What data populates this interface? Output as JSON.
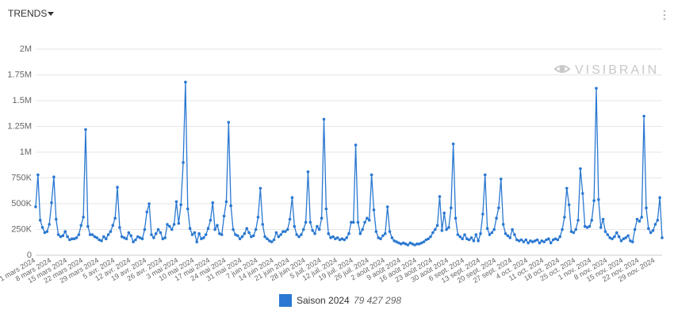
{
  "header": {
    "title": "TRENDS"
  },
  "watermark": "VISIBRAIN",
  "chart_data": {
    "type": "line",
    "categories": [
      "1 mars 2024",
      null,
      null,
      null,
      null,
      null,
      null,
      "8 mars 2024",
      null,
      null,
      null,
      null,
      null,
      null,
      "15 mars 2024",
      null,
      null,
      null,
      null,
      null,
      null,
      "22 mars 2024",
      null,
      null,
      null,
      null,
      null,
      null,
      "29 mars 2024",
      null,
      null,
      null,
      null,
      null,
      null,
      "5 avr. 2024",
      null,
      null,
      null,
      null,
      null,
      null,
      "12 avr. 2024",
      null,
      null,
      null,
      null,
      null,
      null,
      "19 avr. 2024",
      null,
      null,
      null,
      null,
      null,
      null,
      "26 avr. 2024",
      null,
      null,
      null,
      null,
      null,
      null,
      "3 mai 2024",
      null,
      null,
      null,
      null,
      null,
      null,
      "10 mai 2024",
      null,
      null,
      null,
      null,
      null,
      null,
      "17 mai 2024",
      null,
      null,
      null,
      null,
      null,
      null,
      "24 mai 2024",
      null,
      null,
      null,
      null,
      null,
      null,
      "31 mai 2024",
      null,
      null,
      null,
      null,
      null,
      null,
      "7 juin 2024",
      null,
      null,
      null,
      null,
      null,
      null,
      "14 juin 2024",
      null,
      null,
      null,
      null,
      null,
      null,
      "21 juin 2024",
      null,
      null,
      null,
      null,
      null,
      null,
      "28 juin 2024",
      null,
      null,
      null,
      null,
      null,
      null,
      "5 juil. 2024",
      null,
      null,
      null,
      null,
      null,
      null,
      "12 juil. 2024",
      null,
      null,
      null,
      null,
      null,
      null,
      "19 juil. 2024",
      null,
      null,
      null,
      null,
      null,
      null,
      "26 juil. 2024",
      null,
      null,
      null,
      null,
      null,
      null,
      "2 août 2024",
      null,
      null,
      null,
      null,
      null,
      null,
      "9 août 2024",
      null,
      null,
      null,
      null,
      null,
      null,
      "16 août 2024",
      null,
      null,
      null,
      null,
      null,
      null,
      "23 août 2024",
      null,
      null,
      null,
      null,
      null,
      null,
      "30 août 2024",
      null,
      null,
      null,
      null,
      null,
      null,
      "6 sept. 2024",
      null,
      null,
      null,
      null,
      null,
      null,
      "13 sept. 2024",
      null,
      null,
      null,
      null,
      null,
      null,
      "20 sept. 2024",
      null,
      null,
      null,
      null,
      null,
      null,
      "27 sept. 2024",
      null,
      null,
      null,
      null,
      null,
      null,
      "4 oct. 2024",
      null,
      null,
      null,
      null,
      null,
      null,
      "11 oct. 2024",
      null,
      null,
      null,
      null,
      null,
      null,
      "18 oct. 2024",
      null,
      null,
      null,
      null,
      null,
      null,
      "25 oct. 2024",
      null,
      null,
      null,
      null,
      null,
      null,
      "1 nov. 2024",
      null,
      null,
      null,
      null,
      null,
      null,
      "8 nov. 2024",
      null,
      null,
      null,
      null,
      null,
      null,
      "15 nov. 2024",
      null,
      null,
      null,
      null,
      null,
      null,
      "22 nov. 2024",
      null,
      null,
      null,
      null,
      null,
      null,
      "29 nov. 2024",
      null,
      null,
      null
    ],
    "series": [
      {
        "name": "Saison 2024",
        "total": "79 427 298",
        "color": "#2a78d1",
        "values": [
          470000,
          780000,
          340000,
          270000,
          220000,
          230000,
          300000,
          510000,
          760000,
          350000,
          200000,
          180000,
          190000,
          230000,
          180000,
          150000,
          160000,
          160000,
          170000,
          200000,
          290000,
          370000,
          1220000,
          280000,
          200000,
          200000,
          180000,
          170000,
          150000,
          140000,
          180000,
          160000,
          200000,
          230000,
          290000,
          360000,
          660000,
          270000,
          180000,
          170000,
          160000,
          220000,
          190000,
          130000,
          150000,
          180000,
          170000,
          160000,
          250000,
          420000,
          500000,
          200000,
          170000,
          210000,
          250000,
          220000,
          160000,
          170000,
          300000,
          280000,
          250000,
          300000,
          520000,
          310000,
          490000,
          900000,
          1680000,
          450000,
          260000,
          200000,
          220000,
          130000,
          210000,
          160000,
          170000,
          200000,
          260000,
          340000,
          510000,
          250000,
          290000,
          210000,
          200000,
          380000,
          520000,
          1290000,
          480000,
          250000,
          200000,
          190000,
          160000,
          180000,
          210000,
          260000,
          220000,
          180000,
          190000,
          250000,
          370000,
          650000,
          300000,
          180000,
          160000,
          140000,
          130000,
          150000,
          220000,
          180000,
          200000,
          230000,
          230000,
          250000,
          350000,
          560000,
          280000,
          200000,
          180000,
          200000,
          250000,
          320000,
          810000,
          320000,
          240000,
          210000,
          280000,
          250000,
          360000,
          1320000,
          450000,
          210000,
          170000,
          180000,
          160000,
          170000,
          150000,
          160000,
          150000,
          170000,
          210000,
          320000,
          320000,
          1070000,
          320000,
          210000,
          250000,
          320000,
          360000,
          340000,
          780000,
          440000,
          230000,
          170000,
          160000,
          190000,
          210000,
          470000,
          230000,
          170000,
          140000,
          130000,
          120000,
          110000,
          120000,
          110000,
          100000,
          120000,
          110000,
          100000,
          110000,
          110000,
          120000,
          130000,
          150000,
          160000,
          180000,
          220000,
          250000,
          290000,
          570000,
          240000,
          410000,
          250000,
          270000,
          460000,
          1080000,
          360000,
          200000,
          180000,
          160000,
          200000,
          160000,
          150000,
          170000,
          140000,
          200000,
          140000,
          210000,
          400000,
          780000,
          260000,
          200000,
          220000,
          250000,
          360000,
          460000,
          740000,
          300000,
          210000,
          190000,
          170000,
          250000,
          200000,
          150000,
          140000,
          150000,
          130000,
          150000,
          120000,
          140000,
          130000,
          140000,
          150000,
          120000,
          140000,
          130000,
          150000,
          160000,
          120000,
          150000,
          160000,
          150000,
          180000,
          250000,
          370000,
          650000,
          490000,
          230000,
          220000,
          250000,
          340000,
          840000,
          600000,
          280000,
          270000,
          280000,
          340000,
          530000,
          1620000,
          540000,
          270000,
          350000,
          230000,
          200000,
          170000,
          160000,
          180000,
          220000,
          180000,
          140000,
          160000,
          170000,
          190000,
          140000,
          130000,
          250000,
          350000,
          330000,
          370000,
          1350000,
          460000,
          260000,
          220000,
          240000,
          300000,
          340000,
          560000,
          170000
        ]
      }
    ],
    "ylim": [
      0,
      2000000
    ],
    "yticks": [
      0,
      {
        "value": 250000,
        "label": "250K"
      },
      {
        "value": 500000,
        "label": "500K"
      },
      {
        "value": 750000,
        "label": "750K"
      },
      {
        "value": 1000000,
        "label": "1M"
      },
      {
        "value": 1250000,
        "label": "1.25M"
      },
      {
        "value": 1500000,
        "label": "1.5M"
      },
      {
        "value": 1750000,
        "label": "1.75M"
      },
      {
        "value": 2000000,
        "label": "2M"
      }
    ],
    "grid": true
  }
}
